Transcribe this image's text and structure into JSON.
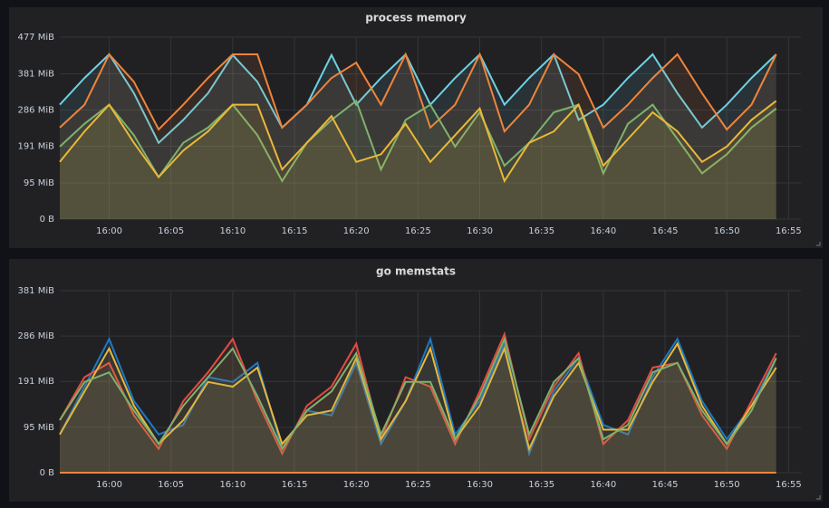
{
  "chart_data": [
    {
      "type": "line",
      "title": "process memory",
      "fill": true,
      "grid": true,
      "x": [
        "15:56",
        "15:58",
        "16:00",
        "16:02",
        "16:04",
        "16:06",
        "16:08",
        "16:10",
        "16:12",
        "16:14",
        "16:16",
        "16:18",
        "16:20",
        "16:22",
        "16:24",
        "16:26",
        "16:28",
        "16:30",
        "16:32",
        "16:34",
        "16:36",
        "16:38",
        "16:40",
        "16:42",
        "16:44",
        "16:46",
        "16:48",
        "16:50",
        "16:52",
        "16:54"
      ],
      "xlim": [
        "15:56",
        "16:56"
      ],
      "xticks": [
        "16:00",
        "16:05",
        "16:10",
        "16:15",
        "16:20",
        "16:25",
        "16:30",
        "16:35",
        "16:40",
        "16:45",
        "16:50",
        "16:55"
      ],
      "ylim": [
        0,
        477
      ],
      "yticks": [
        {
          "value": 0,
          "label": "0 B"
        },
        {
          "value": 95,
          "label": "95 MiB"
        },
        {
          "value": 191,
          "label": "191 MiB"
        },
        {
          "value": 286,
          "label": "286 MiB"
        },
        {
          "value": 381,
          "label": "381 MiB"
        },
        {
          "value": 477,
          "label": "477 MiB"
        }
      ],
      "series": [
        {
          "color": "#6ed0e0",
          "values": [
            300,
            370,
            432,
            330,
            200,
            260,
            330,
            430,
            360,
            240,
            300,
            430,
            300,
            370,
            432,
            300,
            370,
            432,
            300,
            370,
            432,
            260,
            300,
            370,
            432,
            330,
            240,
            300,
            370,
            432
          ]
        },
        {
          "color": "#ef843c",
          "values": [
            240,
            300,
            432,
            360,
            235,
            300,
            370,
            432,
            432,
            240,
            300,
            370,
            410,
            300,
            432,
            240,
            300,
            432,
            230,
            300,
            432,
            380,
            240,
            300,
            370,
            432,
            330,
            235,
            300,
            432
          ]
        },
        {
          "color": "#7eb26d",
          "values": [
            190,
            250,
            300,
            220,
            110,
            200,
            240,
            300,
            220,
            100,
            200,
            260,
            310,
            130,
            260,
            300,
            190,
            280,
            140,
            200,
            280,
            300,
            120,
            250,
            300,
            210,
            120,
            170,
            240,
            290
          ]
        },
        {
          "color": "#eab839",
          "values": [
            150,
            230,
            300,
            200,
            110,
            180,
            230,
            300,
            300,
            130,
            200,
            270,
            150,
            170,
            250,
            150,
            220,
            290,
            100,
            200,
            230,
            300,
            140,
            210,
            280,
            230,
            150,
            190,
            260,
            310
          ]
        }
      ]
    },
    {
      "type": "line",
      "title": "go memstats",
      "fill": true,
      "grid": true,
      "x": [
        "15:56",
        "15:58",
        "16:00",
        "16:02",
        "16:04",
        "16:06",
        "16:08",
        "16:10",
        "16:12",
        "16:14",
        "16:16",
        "16:18",
        "16:20",
        "16:22",
        "16:24",
        "16:26",
        "16:28",
        "16:30",
        "16:32",
        "16:34",
        "16:36",
        "16:38",
        "16:40",
        "16:42",
        "16:44",
        "16:46",
        "16:48",
        "16:50",
        "16:52",
        "16:54"
      ],
      "xlim": [
        "15:56",
        "16:56"
      ],
      "xticks": [
        "16:00",
        "16:05",
        "16:10",
        "16:15",
        "16:20",
        "16:25",
        "16:30",
        "16:35",
        "16:40",
        "16:45",
        "16:50",
        "16:55"
      ],
      "ylim": [
        0,
        381
      ],
      "yticks": [
        {
          "value": 0,
          "label": "0 B"
        },
        {
          "value": 95,
          "label": "95 MiB"
        },
        {
          "value": 191,
          "label": "191 MiB"
        },
        {
          "value": 286,
          "label": "286 MiB"
        },
        {
          "value": 381,
          "label": "381 MiB"
        }
      ],
      "series": [
        {
          "color": "#1f78c1",
          "values": [
            80,
            180,
            280,
            150,
            80,
            100,
            200,
            190,
            230,
            50,
            130,
            120,
            230,
            60,
            150,
            280,
            80,
            150,
            270,
            40,
            170,
            240,
            100,
            80,
            200,
            280,
            150,
            70,
            140,
            240
          ]
        },
        {
          "color": "#e24d42",
          "values": [
            110,
            200,
            230,
            120,
            50,
            150,
            210,
            280,
            150,
            40,
            140,
            180,
            270,
            70,
            200,
            180,
            60,
            170,
            290,
            70,
            180,
            250,
            60,
            110,
            220,
            230,
            120,
            50,
            150,
            250
          ]
        },
        {
          "color": "#eab839",
          "values": [
            80,
            170,
            260,
            140,
            60,
            110,
            190,
            180,
            220,
            60,
            120,
            130,
            240,
            70,
            150,
            260,
            70,
            140,
            260,
            50,
            160,
            230,
            90,
            90,
            190,
            270,
            140,
            60,
            140,
            220
          ]
        },
        {
          "color": "#7eb26d",
          "values": [
            110,
            190,
            210,
            130,
            60,
            140,
            200,
            260,
            160,
            50,
            130,
            170,
            250,
            80,
            190,
            190,
            70,
            160,
            280,
            80,
            190,
            240,
            70,
            100,
            210,
            230,
            130,
            60,
            130,
            240
          ]
        },
        {
          "color": "#ef843c",
          "values": [
            0,
            0,
            0,
            0,
            0,
            0,
            0,
            0,
            0,
            0,
            0,
            0,
            0,
            0,
            0,
            0,
            0,
            0,
            0,
            0,
            0,
            0,
            0,
            0,
            0,
            0,
            0,
            0,
            0,
            0
          ]
        }
      ]
    }
  ]
}
